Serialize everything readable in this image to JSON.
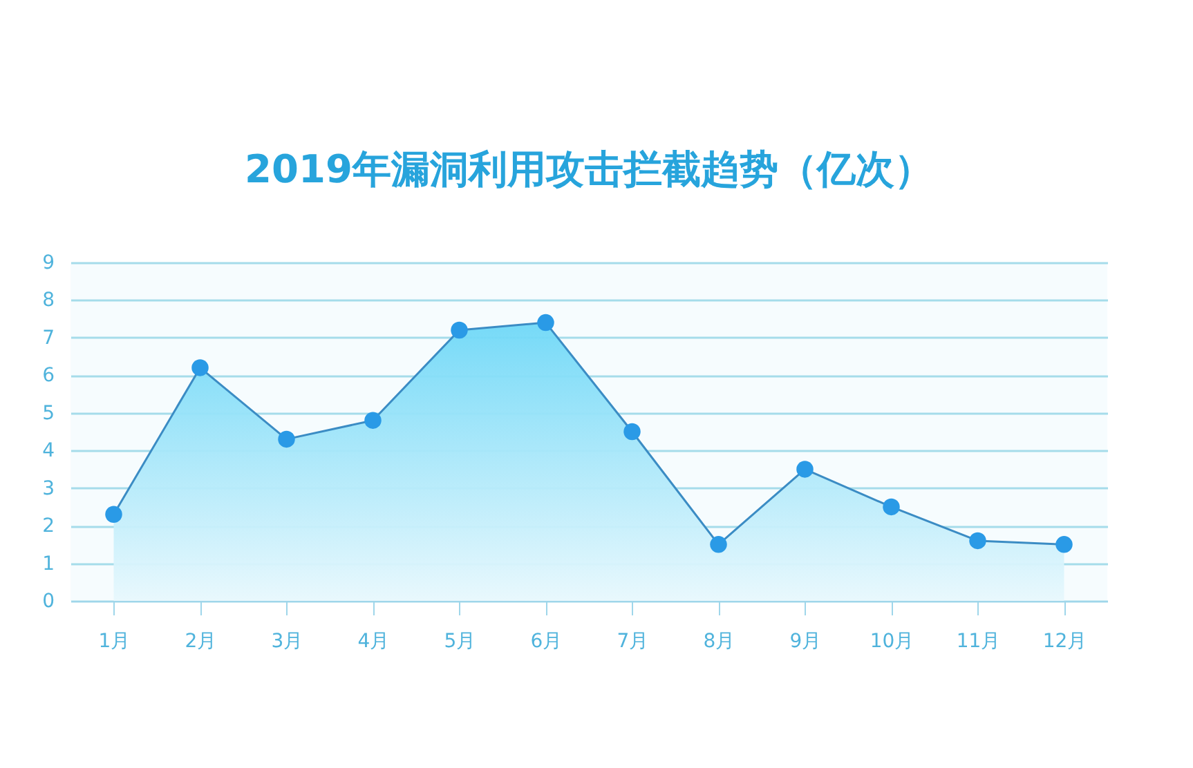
{
  "chart_data": {
    "type": "area",
    "title": "2019年漏洞利用攻击拦截趋势（亿次）",
    "categories": [
      "1月",
      "2月",
      "3月",
      "4月",
      "5月",
      "6月",
      "7月",
      "8月",
      "9月",
      "10月",
      "11月",
      "12月"
    ],
    "series": [
      {
        "color": "#2a9ae6",
        "values": [
          2.3,
          6.2,
          4.3,
          4.8,
          7.2,
          7.4,
          4.5,
          1.5,
          3.5,
          2.5,
          1.6,
          1.5
        ]
      }
    ],
    "ylim": [
      0,
      9
    ],
    "yticks": [
      0,
      1,
      2,
      3,
      4,
      5,
      6,
      7,
      8,
      9
    ],
    "grid": "y",
    "marker": "circle",
    "line_style": "solid"
  }
}
